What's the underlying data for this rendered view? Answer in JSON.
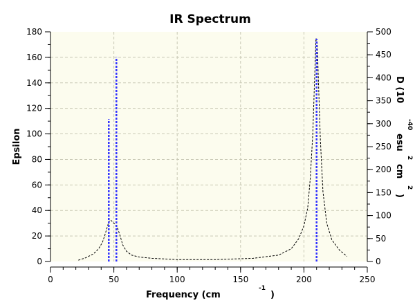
{
  "chart_data": {
    "type": "line",
    "title": "IR Spectrum",
    "xlabel": "Frequency (cm",
    "xlabel_sup": "-1",
    "xlabel_close": ")",
    "ylabel": "Epsilon",
    "y2label_parts": [
      "D (10",
      "-40",
      "esu",
      "2",
      "cm",
      "2",
      ")"
    ],
    "xlim": [
      0,
      250
    ],
    "ylim": [
      0,
      180
    ],
    "y2lim": [
      0,
      500
    ],
    "x_ticks": [
      0,
      50,
      100,
      150,
      200,
      250
    ],
    "y_ticks": [
      0,
      20,
      40,
      60,
      80,
      100,
      120,
      140,
      160,
      180
    ],
    "y2_ticks": [
      0,
      50,
      100,
      150,
      200,
      250,
      300,
      350,
      400,
      450,
      500
    ],
    "grid": true,
    "series": [
      {
        "style": "dashed-line",
        "axis": "left",
        "x": [
          22,
          28,
          34,
          38,
          41,
          43,
          44.5,
          46,
          47.5,
          49,
          51,
          53,
          55,
          57,
          60,
          64,
          70,
          80,
          100,
          130,
          160,
          180,
          190,
          196,
          200,
          203,
          205,
          207,
          208.5,
          209.5,
          210.5,
          211.5,
          213,
          215,
          218,
          222,
          228,
          234
        ],
        "y": [
          1,
          3,
          6,
          10,
          15,
          21,
          26,
          31,
          32.5,
          31,
          29,
          26,
          20,
          13,
          8,
          5,
          3.5,
          2.5,
          1.5,
          1.5,
          2.5,
          5,
          10,
          18,
          28,
          42,
          65,
          100,
          145,
          175,
          172,
          140,
          95,
          55,
          30,
          17,
          9,
          4
        ]
      },
      {
        "style": "stick",
        "axis": "right",
        "x": [
          46,
          52,
          210
        ],
        "y": [
          310,
          445,
          485
        ]
      }
    ],
    "colors": {
      "plot_background": "#fcfcee",
      "grid": "#c8c8b4",
      "spectrum_line": "#000000",
      "stick_line": "#3333ff"
    }
  }
}
